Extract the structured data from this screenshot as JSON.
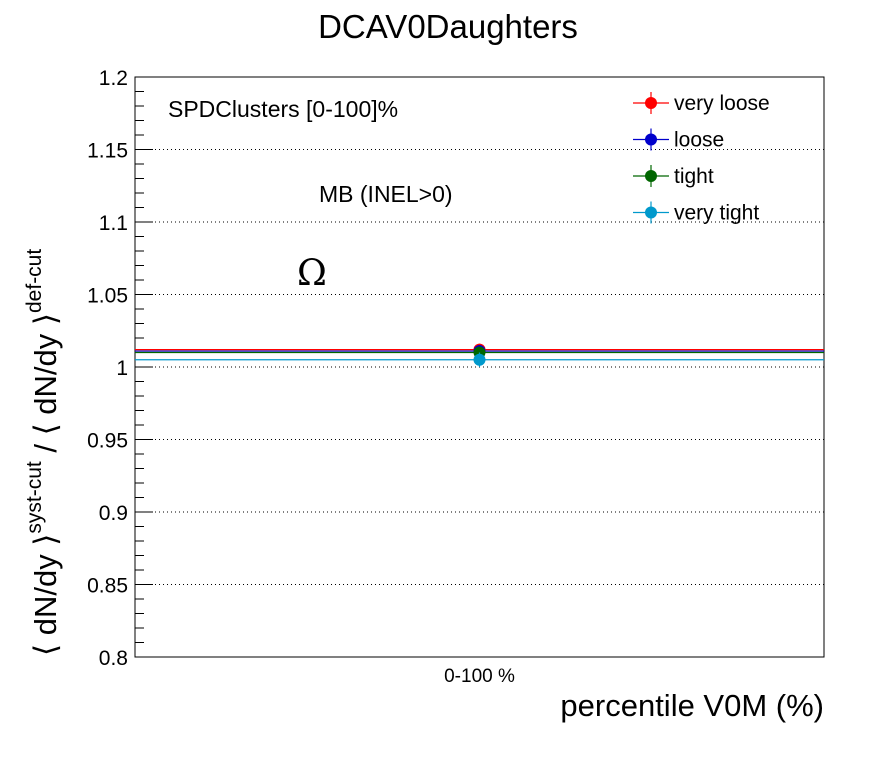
{
  "chart_data": {
    "type": "scatter",
    "title": "DCAV0Daughters",
    "xlabel": "percentile V0M (%)",
    "ylabel": {
      "main": "⟨ dN/dy ⟩",
      "sup1": "syst-cut",
      "sep": " / ",
      "main2": "⟨ dN/dy ⟩",
      "sup2": "def-cut"
    },
    "categories": [
      "0-100 %"
    ],
    "ylim": [
      0.8,
      1.2
    ],
    "yticks": [
      "0.8",
      "0.85",
      "0.9",
      "0.95",
      "1",
      "1.05",
      "1.1",
      "1.15",
      "1.2"
    ],
    "yticks_values": [
      0.8,
      0.85,
      0.9,
      0.95,
      1.0,
      1.05,
      1.1,
      1.15,
      1.2
    ],
    "grid": "horizontal dotted",
    "legend_position": "top-right",
    "annotations": {
      "selection": "SPDClusters [0-100]%",
      "event_class": "MB (INEL>0)",
      "particle": "Ω"
    },
    "series": [
      {
        "name": "very loose",
        "color": "#ff0000",
        "values": [
          1.012
        ],
        "err": [
          0.004
        ]
      },
      {
        "name": "loose",
        "color": "#0000cc",
        "values": [
          1.011
        ],
        "err": [
          0.004
        ]
      },
      {
        "name": "tight",
        "color": "#006600",
        "values": [
          1.01
        ],
        "err": [
          0.004
        ]
      },
      {
        "name": "very tight",
        "color": "#0099cc",
        "values": [
          1.005
        ],
        "err": [
          0.005
        ]
      }
    ]
  }
}
